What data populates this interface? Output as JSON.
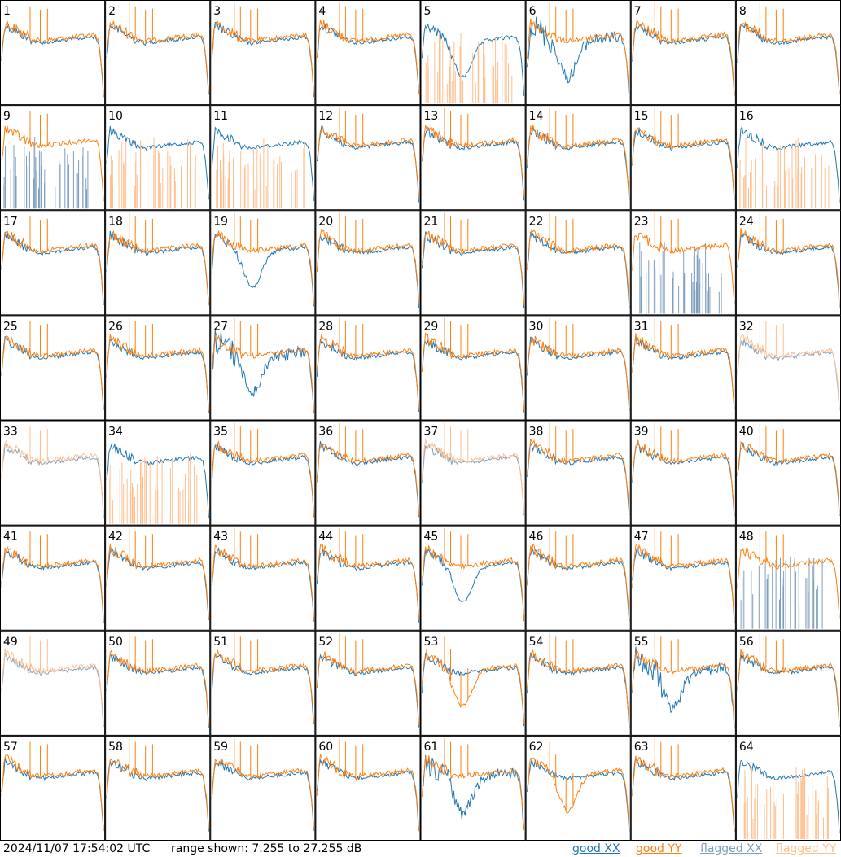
{
  "chart_data": {
    "type": "line",
    "layout": "8x8 small multiples",
    "panels": [
      {
        "label": "1",
        "status": "good"
      },
      {
        "label": "2",
        "status": "good"
      },
      {
        "label": "3",
        "status": "good"
      },
      {
        "label": "4",
        "status": "good"
      },
      {
        "label": "5",
        "status": "yy_flagged",
        "note": "XX smooth curve with deep trough"
      },
      {
        "label": "6",
        "status": "good",
        "note": "XX noisy dip"
      },
      {
        "label": "7",
        "status": "good"
      },
      {
        "label": "8",
        "status": "good"
      },
      {
        "label": "9",
        "status": "xx_flagged"
      },
      {
        "label": "10",
        "status": "yy_flagged"
      },
      {
        "label": "11",
        "status": "yy_flagged"
      },
      {
        "label": "12",
        "status": "good"
      },
      {
        "label": "13",
        "status": "good"
      },
      {
        "label": "14",
        "status": "good"
      },
      {
        "label": "15",
        "status": "good"
      },
      {
        "label": "16",
        "status": "yy_flagged"
      },
      {
        "label": "17",
        "status": "good"
      },
      {
        "label": "18",
        "status": "good"
      },
      {
        "label": "19",
        "status": "good",
        "note": "XX dips lower"
      },
      {
        "label": "20",
        "status": "good"
      },
      {
        "label": "21",
        "status": "good"
      },
      {
        "label": "22",
        "status": "good"
      },
      {
        "label": "23",
        "status": "xx_flagged"
      },
      {
        "label": "24",
        "status": "good"
      },
      {
        "label": "25",
        "status": "good"
      },
      {
        "label": "26",
        "status": "good"
      },
      {
        "label": "27",
        "status": "good",
        "note": "XX noisy dip"
      },
      {
        "label": "28",
        "status": "good"
      },
      {
        "label": "29",
        "status": "good"
      },
      {
        "label": "30",
        "status": "good"
      },
      {
        "label": "31",
        "status": "good"
      },
      {
        "label": "32",
        "status": "both_flagged"
      },
      {
        "label": "33",
        "status": "both_flagged"
      },
      {
        "label": "34",
        "status": "yy_flagged"
      },
      {
        "label": "35",
        "status": "good"
      },
      {
        "label": "36",
        "status": "good"
      },
      {
        "label": "37",
        "status": "both_flagged"
      },
      {
        "label": "38",
        "status": "good"
      },
      {
        "label": "39",
        "status": "good"
      },
      {
        "label": "40",
        "status": "good"
      },
      {
        "label": "41",
        "status": "good"
      },
      {
        "label": "42",
        "status": "good"
      },
      {
        "label": "43",
        "status": "good"
      },
      {
        "label": "44",
        "status": "good"
      },
      {
        "label": "45",
        "status": "good",
        "note": "XX smooth dip"
      },
      {
        "label": "46",
        "status": "good"
      },
      {
        "label": "47",
        "status": "good"
      },
      {
        "label": "48",
        "status": "xx_flagged"
      },
      {
        "label": "49",
        "status": "both_flagged"
      },
      {
        "label": "50",
        "status": "good"
      },
      {
        "label": "51",
        "status": "good"
      },
      {
        "label": "52",
        "status": "good"
      },
      {
        "label": "53",
        "status": "good",
        "note": "YY dips lower"
      },
      {
        "label": "54",
        "status": "good"
      },
      {
        "label": "55",
        "status": "good",
        "note": "XX noisy near bottom"
      },
      {
        "label": "56",
        "status": "good"
      },
      {
        "label": "57",
        "status": "good"
      },
      {
        "label": "58",
        "status": "good"
      },
      {
        "label": "59",
        "status": "good"
      },
      {
        "label": "60",
        "status": "good"
      },
      {
        "label": "61",
        "status": "good",
        "note": "XX noisy dip"
      },
      {
        "label": "62",
        "status": "good",
        "note": "YY dips lower"
      },
      {
        "label": "63",
        "status": "good"
      },
      {
        "label": "64",
        "status": "yy_flagged"
      }
    ],
    "series": [
      {
        "name": "good XX",
        "color": "#1f77b4"
      },
      {
        "name": "good YY",
        "color": "#ff7f0e"
      },
      {
        "name": "flagged XX",
        "color": "#7f9fbf"
      },
      {
        "name": "flagged YY",
        "color": "#ffbf8f"
      }
    ],
    "legend_placement": "bottom-right",
    "grid": false
  },
  "footer": {
    "timestamp": "2024/11/07 17:54:02 UTC",
    "range_text": "range shown: 7.255 to 27.255 dB"
  },
  "legend": [
    {
      "text": "good XX",
      "color": "#1f77b4"
    },
    {
      "text": "good YY",
      "color": "#ff7f0e"
    },
    {
      "text": "flagged XX",
      "color": "#7f9fbf"
    },
    {
      "text": "flagged YY",
      "color": "#ffbf8f"
    }
  ]
}
